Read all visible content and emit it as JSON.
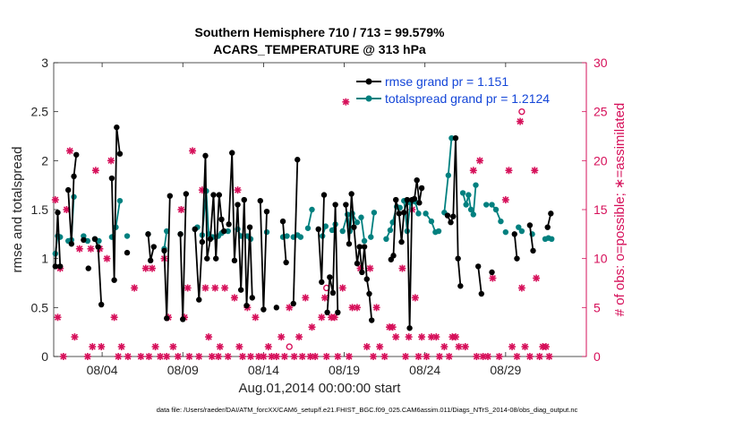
{
  "title_line1": "Southern Hemisphere 710 / 713 = 99.579%",
  "title_line2": "ACARS_TEMPERATURE @ 313 hPa",
  "xlabel": "Aug.01,2014 00:00:00 start",
  "footer": "data file: /Users/raeder/DAI/ATM_forcXX/CAM6_setup/f.e21.FHIST_BGC.f09_025.CAM6assim.011/Diags_NTrS_2014-08/obs_diag_output.nc",
  "colors": {
    "rmse": "#000000",
    "spread": "#00807f",
    "obs": "#d6105a",
    "legend_rmse": "#1446d8",
    "legend_spread": "#1446d8"
  },
  "chart_data": {
    "type": "line",
    "xlim": [
      1,
      34
    ],
    "x_ticks": [
      {
        "x": 4,
        "label": "08/04"
      },
      {
        "x": 9,
        "label": "08/09"
      },
      {
        "x": 14,
        "label": "08/14"
      },
      {
        "x": 19,
        "label": "08/19"
      },
      {
        "x": 24,
        "label": "08/24"
      },
      {
        "x": 29,
        "label": "08/29"
      }
    ],
    "left_axis": {
      "label": "rmse and totalspread",
      "ylim": [
        0,
        3
      ],
      "ticks": [
        "0",
        "0.5",
        "1",
        "1.5",
        "2",
        "2.5",
        "3"
      ]
    },
    "right_axis": {
      "label": "# of obs: o=possible; ∗=assimilated",
      "ylim": [
        0,
        30
      ],
      "ticks": [
        "0",
        "5",
        "10",
        "15",
        "20",
        "25",
        "30"
      ]
    },
    "legend": [
      {
        "name": "rmse grand pr = 1.151",
        "series": "rmse"
      },
      {
        "name": "totalspread grand pr = 1.2124",
        "series": "spread"
      }
    ],
    "legend_position": "top-right",
    "rmse": [
      [
        [
          1.1,
          0.92
        ],
        [
          1.25,
          1.47
        ],
        [
          1.4,
          0.92
        ]
      ],
      [
        [
          1.9,
          1.7
        ],
        [
          2.1,
          1.15
        ],
        [
          2.25,
          1.84
        ],
        [
          2.4,
          2.06
        ]
      ],
      [
        [
          2.85,
          1.19
        ]
      ],
      [
        [
          3.15,
          0.9
        ]
      ],
      [
        [
          3.55,
          1.2
        ],
        [
          3.75,
          1.12
        ],
        [
          3.95,
          0.53
        ]
      ],
      [
        [
          4.6,
          1.82
        ],
        [
          4.75,
          0.78
        ],
        [
          4.9,
          2.34
        ],
        [
          5.1,
          2.07
        ]
      ],
      [
        [
          5.55,
          1.06
        ]
      ],
      [
        [
          6.85,
          1.25
        ],
        [
          7.0,
          0.98
        ],
        [
          7.2,
          1.12
        ]
      ],
      [
        [
          7.85,
          1.08
        ],
        [
          8.0,
          0.39
        ],
        [
          8.2,
          1.64
        ]
      ],
      [
        [
          8.85,
          1.25
        ],
        [
          9.0,
          0.38
        ],
        [
          9.2,
          1.66
        ]
      ],
      [
        [
          9.75,
          1.3
        ],
        [
          10.0,
          0.58
        ],
        [
          10.2,
          1.17
        ],
        [
          10.4,
          2.05
        ],
        [
          10.5,
          1.0
        ],
        [
          10.7,
          1.2
        ],
        [
          10.9,
          1.65
        ],
        [
          11.05,
          1.0
        ],
        [
          11.25,
          1.65
        ],
        [
          11.4,
          1.4
        ],
        [
          11.55,
          1.28
        ]
      ],
      [
        [
          11.85,
          1.35
        ],
        [
          12.05,
          2.08
        ],
        [
          12.2,
          0.98
        ],
        [
          12.4,
          1.55
        ],
        [
          12.6,
          0.68
        ],
        [
          12.8,
          1.6
        ],
        [
          12.95,
          0.52
        ],
        [
          13.15,
          1.32
        ],
        [
          13.3,
          0.6
        ]
      ],
      [
        [
          13.8,
          1.59
        ],
        [
          14.0,
          0.48
        ],
        [
          14.2,
          1.48
        ]
      ],
      [
        [
          14.8,
          0.5
        ]
      ],
      [
        [
          15.2,
          1.38
        ],
        [
          15.4,
          0.96
        ]
      ],
      [
        [
          15.85,
          0.54
        ],
        [
          16.1,
          2.01
        ]
      ],
      [
        [
          17.4,
          1.3
        ],
        [
          17.6,
          0.76
        ],
        [
          17.75,
          1.65
        ]
      ],
      [
        [
          17.95,
          0.45
        ],
        [
          18.1,
          0.81
        ],
        [
          18.3,
          0.65
        ],
        [
          18.45,
          1.55
        ],
        [
          18.6,
          0.45
        ]
      ],
      [
        [
          19.1,
          1.55
        ],
        [
          19.3,
          1.15
        ],
        [
          19.45,
          1.66
        ],
        [
          19.6,
          1.32
        ],
        [
          19.8,
          0.95
        ],
        [
          19.95,
          1.12
        ],
        [
          20.1,
          0.86
        ],
        [
          20.25,
          1.12
        ],
        [
          20.4,
          0.79
        ],
        [
          20.55,
          0.64
        ],
        [
          20.7,
          0.37
        ]
      ],
      [
        [
          21.9,
          0.99
        ],
        [
          22.05,
          1.03
        ],
        [
          22.2,
          1.6
        ],
        [
          22.4,
          1.46
        ],
        [
          22.55,
          1.17
        ],
        [
          22.7,
          1.47
        ],
        [
          22.9,
          1.6
        ],
        [
          23.05,
          0.29
        ],
        [
          23.2,
          1.6
        ],
        [
          23.35,
          1.61
        ],
        [
          23.5,
          1.8
        ],
        [
          23.65,
          1.57
        ],
        [
          23.8,
          1.72
        ]
      ],
      [
        [
          25.4,
          1.44
        ],
        [
          25.6,
          1.37
        ],
        [
          25.75,
          1.43
        ],
        [
          25.9,
          2.23
        ],
        [
          26.05,
          1.0
        ],
        [
          26.2,
          0.72
        ]
      ],
      [
        [
          27.3,
          0.92
        ],
        [
          27.5,
          0.64
        ]
      ],
      [
        [
          28.15,
          0.86
        ]
      ],
      [
        [
          29.55,
          1.25
        ],
        [
          29.7,
          1.0
        ]
      ],
      [
        [
          30.5,
          1.34
        ],
        [
          30.7,
          1.08
        ]
      ],
      [
        [
          31.6,
          1.32
        ],
        [
          31.8,
          1.46
        ]
      ]
    ],
    "spread": [
      [
        [
          1.1,
          1.05
        ],
        [
          1.25,
          1.23
        ],
        [
          1.4,
          1.22
        ]
      ],
      [
        [
          1.9,
          1.18
        ],
        [
          2.1,
          1.19
        ],
        [
          2.25,
          1.63
        ]
      ],
      [
        [
          2.85,
          1.23
        ],
        [
          3.1,
          1.18
        ]
      ],
      [
        [
          3.55,
          1.2
        ],
        [
          3.8,
          1.18
        ]
      ],
      [
        [
          4.6,
          1.22
        ],
        [
          4.85,
          1.32
        ],
        [
          5.1,
          1.59
        ]
      ],
      [
        [
          5.55,
          1.23
        ]
      ],
      [
        [
          6.85,
          1.25
        ]
      ],
      [
        [
          7.85,
          1.1
        ],
        [
          8.0,
          1.28
        ]
      ],
      [
        [
          8.85,
          1.25
        ]
      ],
      [
        [
          9.75,
          1.3
        ],
        [
          9.9,
          1.32
        ]
      ],
      [
        [
          10.2,
          1.24
        ],
        [
          10.45,
          1.69
        ],
        [
          10.6,
          1.25
        ],
        [
          10.85,
          1.22
        ]
      ],
      [
        [
          11.2,
          1.23
        ],
        [
          11.4,
          1.26
        ]
      ],
      [
        [
          11.8,
          1.28
        ]
      ],
      [
        [
          12.4,
          1.3
        ],
        [
          12.6,
          1.23
        ]
      ],
      [
        [
          13.0,
          1.23
        ],
        [
          13.2,
          1.2
        ]
      ],
      [
        [
          14.2,
          1.27
        ]
      ],
      [
        [
          15.2,
          1.22
        ],
        [
          15.45,
          1.23
        ]
      ],
      [
        [
          15.85,
          1.22
        ],
        [
          16.1,
          1.24
        ],
        [
          16.3,
          1.22
        ]
      ],
      [
        [
          16.75,
          1.31
        ],
        [
          17.0,
          1.5
        ]
      ],
      [
        [
          17.65,
          1.23
        ],
        [
          17.85,
          1.33
        ]
      ],
      [
        [
          18.25,
          1.29
        ],
        [
          18.45,
          1.35
        ]
      ],
      [
        [
          18.9,
          1.28
        ],
        [
          19.2,
          1.45
        ],
        [
          19.35,
          1.28
        ],
        [
          19.5,
          1.46
        ],
        [
          19.8,
          1.37
        ]
      ],
      [
        [
          20.05,
          1.42
        ],
        [
          20.25,
          1.18
        ]
      ],
      [
        [
          20.65,
          1.22
        ],
        [
          20.85,
          1.47
        ]
      ],
      [
        [
          21.6,
          1.2
        ],
        [
          21.85,
          1.29
        ],
        [
          22.0,
          1.37
        ],
        [
          22.25,
          1.53
        ],
        [
          22.45,
          1.52
        ]
      ],
      [
        [
          22.7,
          1.59
        ],
        [
          22.9,
          1.28
        ],
        [
          23.1,
          1.57
        ]
      ],
      [
        [
          23.4,
          1.58
        ],
        [
          23.6,
          1.46
        ]
      ],
      [
        [
          24.05,
          1.46
        ],
        [
          24.4,
          1.38
        ],
        [
          24.65,
          1.27
        ],
        [
          24.85,
          1.28
        ]
      ],
      [
        [
          25.2,
          1.47
        ],
        [
          25.45,
          1.85
        ],
        [
          25.65,
          2.23
        ]
      ],
      [
        [
          26.35,
          1.67
        ],
        [
          26.55,
          1.55
        ],
        [
          26.7,
          1.65
        ],
        [
          26.85,
          1.5
        ],
        [
          27.0,
          1.45
        ],
        [
          27.15,
          1.75
        ]
      ],
      [
        [
          27.8,
          1.55
        ]
      ],
      [
        [
          28.15,
          1.55
        ],
        [
          28.4,
          1.5
        ],
        [
          28.7,
          1.38
        ]
      ],
      [
        [
          29.0,
          1.27
        ]
      ],
      [
        [
          29.8,
          1.32
        ],
        [
          30.0,
          1.28
        ]
      ],
      [
        [
          30.65,
          1.25
        ]
      ],
      [
        [
          31.45,
          1.2
        ],
        [
          31.65,
          1.21
        ],
        [
          31.85,
          1.2
        ]
      ]
    ],
    "obs_assimilated": [
      [
        1.1,
        16
      ],
      [
        1.25,
        4
      ],
      [
        1.4,
        9
      ],
      [
        1.6,
        0
      ],
      [
        1.8,
        15
      ],
      [
        2.0,
        21
      ],
      [
        2.3,
        2
      ],
      [
        2.6,
        11
      ],
      [
        3.1,
        0
      ],
      [
        3.3,
        11
      ],
      [
        3.4,
        1
      ],
      [
        3.6,
        19
      ],
      [
        3.85,
        11
      ],
      [
        3.95,
        1
      ],
      [
        4.3,
        10
      ],
      [
        4.55,
        20
      ],
      [
        4.75,
        4
      ],
      [
        5.0,
        0
      ],
      [
        5.2,
        1
      ],
      [
        5.6,
        0
      ],
      [
        6.0,
        7
      ],
      [
        6.4,
        0
      ],
      [
        6.7,
        9
      ],
      [
        6.9,
        0
      ],
      [
        7.1,
        9
      ],
      [
        7.3,
        1
      ],
      [
        7.6,
        0
      ],
      [
        7.85,
        10
      ],
      [
        8.0,
        0
      ],
      [
        8.1,
        4
      ],
      [
        8.4,
        1
      ],
      [
        8.7,
        0
      ],
      [
        8.9,
        15
      ],
      [
        9.1,
        4
      ],
      [
        9.3,
        7
      ],
      [
        9.4,
        0
      ],
      [
        9.6,
        21
      ],
      [
        10.0,
        0
      ],
      [
        10.2,
        17
      ],
      [
        10.4,
        7
      ],
      [
        10.6,
        2
      ],
      [
        10.8,
        0
      ],
      [
        11.0,
        7
      ],
      [
        11.2,
        0
      ],
      [
        11.3,
        1
      ],
      [
        11.6,
        7
      ],
      [
        11.8,
        0
      ],
      [
        12.2,
        6
      ],
      [
        12.4,
        17
      ],
      [
        12.5,
        1
      ],
      [
        12.7,
        0
      ],
      [
        13.0,
        5
      ],
      [
        13.2,
        0
      ],
      [
        13.5,
        4
      ],
      [
        13.7,
        0
      ],
      [
        14.0,
        0
      ],
      [
        14.3,
        1
      ],
      [
        14.5,
        0
      ],
      [
        14.8,
        0
      ],
      [
        15.1,
        2
      ],
      [
        15.3,
        0
      ],
      [
        15.6,
        5
      ],
      [
        15.9,
        0
      ],
      [
        16.2,
        2
      ],
      [
        16.4,
        0
      ],
      [
        16.6,
        6
      ],
      [
        16.9,
        0
      ],
      [
        17.0,
        3
      ],
      [
        17.2,
        0
      ],
      [
        17.6,
        4
      ],
      [
        17.8,
        6
      ],
      [
        17.9,
        0
      ],
      [
        18.2,
        4
      ],
      [
        18.4,
        4
      ],
      [
        18.6,
        0
      ],
      [
        18.9,
        7
      ],
      [
        19.1,
        26
      ],
      [
        19.3,
        0
      ],
      [
        19.5,
        5
      ],
      [
        19.8,
        5
      ],
      [
        20.0,
        9
      ],
      [
        20.4,
        1
      ],
      [
        20.6,
        9
      ],
      [
        20.8,
        0
      ],
      [
        21.0,
        5
      ],
      [
        21.2,
        1
      ],
      [
        21.5,
        0
      ],
      [
        21.8,
        3
      ],
      [
        22.0,
        3
      ],
      [
        22.2,
        2
      ],
      [
        22.4,
        28
      ],
      [
        22.6,
        9
      ],
      [
        22.8,
        0
      ],
      [
        23.0,
        2
      ],
      [
        23.2,
        15
      ],
      [
        23.4,
        6
      ],
      [
        23.6,
        0
      ],
      [
        23.8,
        2
      ],
      [
        24.1,
        0
      ],
      [
        24.4,
        2
      ],
      [
        24.7,
        2
      ],
      [
        24.9,
        0
      ],
      [
        25.2,
        1
      ],
      [
        25.5,
        0
      ],
      [
        25.7,
        2
      ],
      [
        25.9,
        2
      ],
      [
        26.1,
        1
      ],
      [
        26.5,
        1
      ],
      [
        27.0,
        19
      ],
      [
        27.2,
        0
      ],
      [
        27.4,
        20
      ],
      [
        27.6,
        0
      ],
      [
        27.9,
        0
      ],
      [
        28.2,
        8
      ],
      [
        28.6,
        0
      ],
      [
        29.0,
        16
      ],
      [
        29.2,
        19
      ],
      [
        29.4,
        1
      ],
      [
        29.7,
        0
      ],
      [
        29.9,
        24
      ],
      [
        30.0,
        7
      ],
      [
        30.2,
        1
      ],
      [
        30.5,
        0
      ],
      [
        30.8,
        19
      ],
      [
        30.9,
        8
      ],
      [
        31.1,
        0
      ],
      [
        31.3,
        1
      ],
      [
        31.5,
        1
      ],
      [
        31.7,
        0
      ]
    ],
    "obs_possible": [
      [
        15.6,
        1
      ],
      [
        17.9,
        7
      ],
      [
        30.0,
        25
      ]
    ]
  }
}
